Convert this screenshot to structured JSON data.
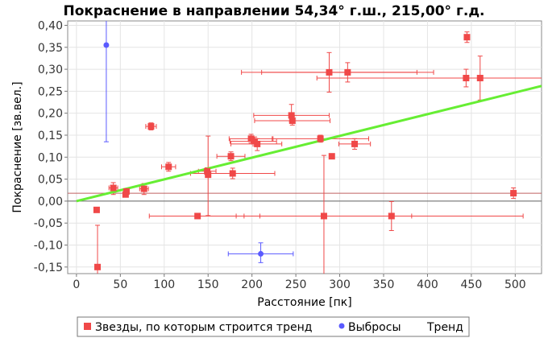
{
  "chart_data": {
    "type": "scatter",
    "title": "Покраснение в направлении 54,34° г.ш., 215,00° г.д.",
    "xlabel": "Расстояние [пк]",
    "ylabel": "Покраснение [зв.вел.]",
    "xlim": [
      -10,
      530
    ],
    "ylim": [
      -0.165,
      0.41
    ],
    "xticks": [
      0,
      50,
      100,
      150,
      200,
      250,
      300,
      350,
      400,
      450,
      500
    ],
    "yticks": [
      -0.15,
      -0.1,
      -0.05,
      0.0,
      0.05,
      0.1,
      0.15,
      0.2,
      0.25,
      0.3,
      0.35,
      0.4
    ],
    "x_tick_labels": [
      "0",
      "50",
      "100",
      "150",
      "200",
      "250",
      "300",
      "350",
      "400",
      "450",
      "500"
    ],
    "y_tick_labels": [
      "-0,15",
      "-0,10",
      "-0,05",
      "0,00",
      "0,05",
      "0,10",
      "0,15",
      "0,20",
      "0,25",
      "0,30",
      "0,35",
      "0,40"
    ],
    "grid": true,
    "legend_position": "bottom",
    "reference_line_y": 0.018,
    "series": [
      {
        "name": "Звезды, по которым строится тренд",
        "marker": "square",
        "color": "#f04848",
        "points": [
          {
            "x": 23,
            "y": -0.02,
            "xerr": [
              0,
              0
            ],
            "yerr": [
              0.005,
              0.005
            ]
          },
          {
            "x": 24,
            "y": -0.15,
            "xerr": [
              0,
              0
            ],
            "yerr": [
              0.015,
              0.095
            ]
          },
          {
            "x": 42,
            "y": 0.03,
            "xerr": [
              5,
              5
            ],
            "yerr": [
              0.015,
              0.012
            ]
          },
          {
            "x": 56,
            "y": 0.015,
            "xerr": [
              0,
              0
            ],
            "yerr": [
              0.005,
              0.005
            ]
          },
          {
            "x": 57,
            "y": 0.022,
            "xerr": [
              0,
              0
            ],
            "yerr": [
              0.005,
              0.005
            ]
          },
          {
            "x": 77,
            "y": 0.028,
            "xerr": [
              5,
              5
            ],
            "yerr": [
              0.013,
              0.012
            ]
          },
          {
            "x": 85,
            "y": 0.17,
            "xerr": [
              6,
              6
            ],
            "yerr": [
              0.008,
              0.008
            ]
          },
          {
            "x": 105,
            "y": 0.078,
            "xerr": [
              8,
              8
            ],
            "yerr": [
              0.01,
              0.01
            ]
          },
          {
            "x": 138,
            "y": -0.034,
            "xerr": [
              55,
              53
            ],
            "yerr": [
              0,
              0
            ]
          },
          {
            "x": 149,
            "y": 0.068,
            "xerr": [
              10,
              10
            ],
            "yerr": [
              0.008,
              0.008
            ]
          },
          {
            "x": 150,
            "y": 0.06,
            "xerr": [
              0,
              0
            ],
            "yerr": [
              0.093,
              0.088
            ]
          },
          {
            "x": 176,
            "y": 0.102,
            "xerr": [
              16,
              16
            ],
            "yerr": [
              0.01,
              0.01
            ]
          },
          {
            "x": 178,
            "y": 0.063,
            "xerr": [
              48,
              48
            ],
            "yerr": [
              0.012,
              0.012
            ]
          },
          {
            "x": 199,
            "y": 0.142,
            "xerr": [
              25,
              25
            ],
            "yerr": [
              0.01,
              0.01
            ]
          },
          {
            "x": 203,
            "y": 0.136,
            "xerr": [
              28,
              25
            ],
            "yerr": [
              0.01,
              0.01
            ]
          },
          {
            "x": 206,
            "y": 0.13,
            "xerr": [
              30,
              28
            ],
            "yerr": [
              0.015,
              0.012
            ]
          },
          {
            "x": 245,
            "y": 0.195,
            "xerr": [
              43,
              43
            ],
            "yerr": [
              0.015,
              0.025
            ]
          },
          {
            "x": 246,
            "y": 0.183,
            "xerr": [
              43,
              43
            ],
            "yerr": [
              0.01,
              0.01
            ]
          },
          {
            "x": 278,
            "y": 0.142,
            "xerr": [
              55,
              55
            ],
            "yerr": [
              0.008,
              0.008
            ]
          },
          {
            "x": 282,
            "y": -0.034,
            "xerr": [
              100,
              100
            ],
            "yerr": [
              0.14,
              0.138
            ]
          },
          {
            "x": 288,
            "y": 0.293,
            "xerr": [
              100,
              100
            ],
            "yerr": [
              0.045,
              0.045
            ]
          },
          {
            "x": 291,
            "y": 0.102,
            "xerr": [
              0,
              0
            ],
            "yerr": [
              0.005,
              0.005
            ]
          },
          {
            "x": 309,
            "y": 0.293,
            "xerr": [
              98,
              98
            ],
            "yerr": [
              0.022,
              0.022
            ]
          },
          {
            "x": 317,
            "y": 0.13,
            "xerr": [
              18,
              18
            ],
            "yerr": [
              0.012,
              0.012
            ]
          },
          {
            "x": 359,
            "y": -0.034,
            "xerr": [
              150,
              150
            ],
            "yerr": [
              0.033,
              0.033
            ]
          },
          {
            "x": 444,
            "y": 0.28,
            "xerr": [
              170,
              170
            ],
            "yerr": [
              0.02,
              0.02
            ]
          },
          {
            "x": 445,
            "y": 0.373,
            "xerr": [
              0,
              0
            ],
            "yerr": [
              0.012,
              0.012
            ]
          },
          {
            "x": 460,
            "y": 0.28,
            "xerr": [
              0,
              0
            ],
            "yerr": [
              0.05,
              0.05
            ]
          },
          {
            "x": 498,
            "y": 0.018,
            "xerr": [
              0,
              0
            ],
            "yerr": [
              0.012,
              0.012
            ]
          }
        ]
      },
      {
        "name": "Выбросы",
        "marker": "circle",
        "color": "#5a5aff",
        "points": [
          {
            "x": 34,
            "y": 0.355,
            "xerr": [
              0,
              0
            ],
            "yerr": [
              0.22,
              0.11
            ]
          },
          {
            "x": 210,
            "y": -0.12,
            "xerr": [
              37,
              37
            ],
            "yerr": [
              0.02,
              0.025
            ]
          }
        ]
      },
      {
        "name": "Тренд",
        "type": "line",
        "color": "#66ee33",
        "x": [
          0,
          530
        ],
        "y": [
          0.0,
          0.262
        ]
      }
    ]
  }
}
